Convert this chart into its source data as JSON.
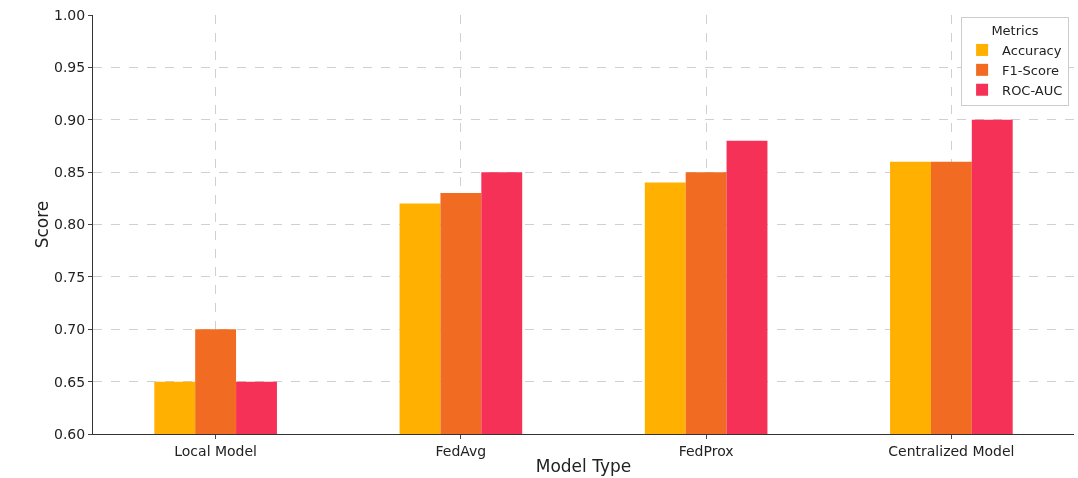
{
  "chart_data": {
    "type": "bar",
    "xlabel": "Model Type",
    "ylabel": "Score",
    "legend_title": "Metrics",
    "legend": "top right",
    "grid": true,
    "categories": [
      "Local Model",
      "FedAvg",
      "FedProx",
      "Centralized Model"
    ],
    "series": [
      {
        "name": "Accuracy",
        "color": "#ffb000",
        "values": [
          0.65,
          0.82,
          0.84,
          0.86
        ]
      },
      {
        "name": "F1-Score",
        "color": "#f26b22",
        "values": [
          0.7,
          0.83,
          0.85,
          0.86
        ]
      },
      {
        "name": "ROC-AUC",
        "color": "#f53157",
        "values": [
          0.65,
          0.85,
          0.88,
          0.9
        ]
      }
    ],
    "ylim": [
      0.6,
      1.0
    ],
    "yticks": [
      {
        "value": 0.6,
        "label": "0.60"
      },
      {
        "value": 0.65,
        "label": "0.65"
      },
      {
        "value": 0.7,
        "label": "0.70"
      },
      {
        "value": 0.75,
        "label": "0.75"
      },
      {
        "value": 0.8,
        "label": "0.80"
      },
      {
        "value": 0.85,
        "label": "0.85"
      },
      {
        "value": 0.9,
        "label": "0.90"
      },
      {
        "value": 0.95,
        "label": "0.95"
      },
      {
        "value": 1.0,
        "label": "1.00"
      }
    ]
  }
}
